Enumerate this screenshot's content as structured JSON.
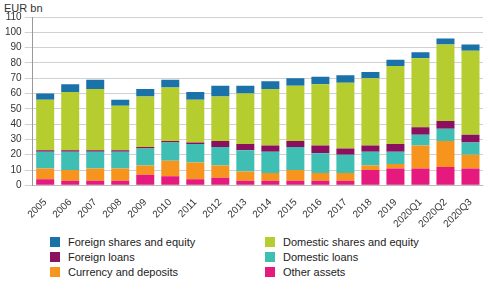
{
  "chart_data": {
    "type": "bar",
    "ylabel": "EUR bn",
    "stacked": true,
    "grid": true,
    "categories": [
      "2005",
      "2006",
      "2007",
      "2008",
      "2009",
      "2010",
      "2011",
      "2012",
      "2013",
      "2014",
      "2015",
      "2016",
      "2017",
      "2018",
      "2019",
      "2020Q1",
      "2020Q2",
      "2020Q3"
    ],
    "ylim": [
      0,
      110
    ],
    "yticks": [
      0,
      10,
      20,
      30,
      40,
      50,
      60,
      70,
      80,
      90,
      100,
      110
    ],
    "series": [
      {
        "name": "Other assets",
        "color": "#e5197e",
        "values": [
          4,
          3,
          3,
          3,
          7,
          6,
          4,
          5,
          3,
          3,
          3,
          3,
          3,
          10,
          11,
          11,
          12,
          11
        ]
      },
      {
        "name": "Currency and deposits",
        "color": "#f7941d",
        "values": [
          7,
          7,
          8,
          8,
          6,
          10,
          11,
          8,
          6,
          5,
          7,
          5,
          5,
          3,
          3,
          15,
          17,
          9
        ]
      },
      {
        "name": "Domestic loans",
        "color": "#3fbfb3",
        "values": [
          11,
          12,
          11,
          11,
          11,
          12,
          12,
          12,
          14,
          14,
          15,
          13,
          12,
          9,
          8,
          7,
          8,
          8
        ]
      },
      {
        "name": "Foreign loans",
        "color": "#8b1060",
        "values": [
          1,
          1,
          1,
          1,
          1,
          1,
          1,
          4,
          4,
          4,
          4,
          5,
          4,
          4,
          5,
          5,
          5,
          5
        ]
      },
      {
        "name": "Domestic shares and equity",
        "color": "#b5cd2f",
        "values": [
          33,
          38,
          40,
          29,
          33,
          35,
          28,
          29,
          33,
          37,
          36,
          40,
          43,
          44,
          51,
          45,
          50,
          55
        ]
      },
      {
        "name": "Foreign shares and equity",
        "color": "#1a72a8",
        "values": [
          4,
          5,
          6,
          4,
          5,
          5,
          5,
          7,
          5,
          5,
          5,
          5,
          5,
          4,
          4,
          4,
          4,
          4
        ]
      }
    ]
  }
}
